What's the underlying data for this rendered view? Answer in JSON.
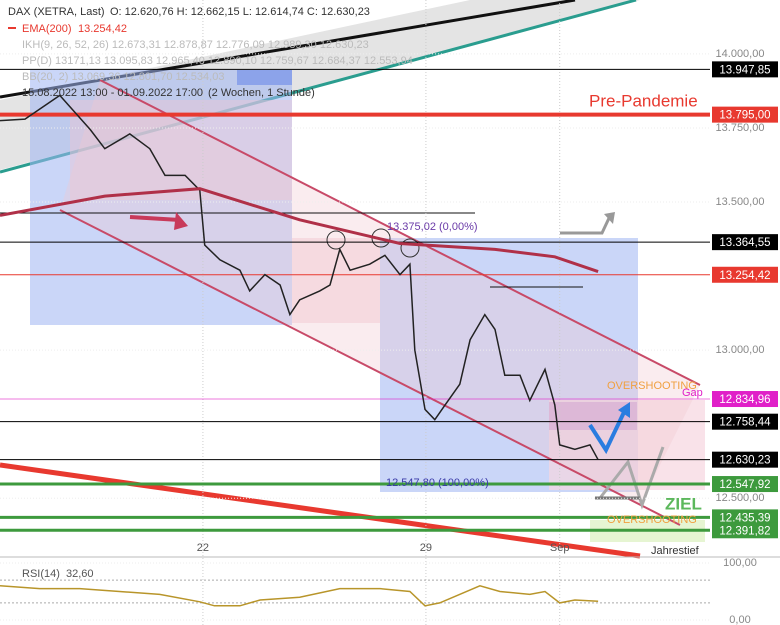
{
  "chart_data": [
    {
      "type": "line",
      "ohlc_text": "O: 12.620,76 H: 12.662,15 L: 12.614,74 C: 12.630,23",
      "legend_value": "13.254,42",
      "indicator_legends": [
        "IKH(9, 26, 52, 26) 12.673,31 12.878,87 12.776,09 12.989,30 12.630,23",
        "PP(D) 13171,13 13.095,83 12.965,40 12.890,10 12.759,67 12.684,37 12.553,94",
        "BB(20, 2) 13.069,36 12.801,70 12.534,03"
      ],
      "period": "15.08.2022 13:00 - 01.09.2022 17:00",
      "period_note": "(2 Wochen, 1 Stunde)",
      "x": [
        0.45,
        1.01,
        1.79,
        2.47,
        2.8,
        3.36,
        3.81,
        4.15,
        4.6,
        4.93,
        5.04,
        5.38,
        5.83,
        6.05,
        6.39,
        6.73,
        6.95,
        7.17,
        7.62,
        7.85,
        8.07,
        8.3,
        8.74,
        9.08,
        9.42,
        9.64,
        9.75,
        9.98,
        10.2,
        10.43,
        10.76,
        10.99,
        11.32,
        11.55,
        11.77,
        12.11,
        12.33,
        12.67,
        12.89,
        13.0,
        13.34,
        13.68,
        13.86
      ],
      "series": [
        {
          "name": "DAX (XETRA, Last)",
          "color": "#222222",
          "values": [
            13775,
            13780,
            13860,
            13745,
            13680,
            13730,
            13680,
            13590,
            13590,
            13540,
            13355,
            13305,
            13270,
            13200,
            13255,
            13220,
            13120,
            13170,
            13200,
            13220,
            13340,
            13270,
            13290,
            13320,
            13255,
            13290,
            13000,
            12800,
            12765,
            12815,
            12885,
            13035,
            13120,
            13070,
            12915,
            12915,
            12830,
            12935,
            12815,
            12680,
            12665,
            12680,
            12630
          ]
        },
        {
          "name": "EMA(200)",
          "color": "#b03048",
          "values": [
            13455,
            null,
            null,
            null,
            13520,
            null,
            null,
            null,
            null,
            13545,
            null,
            null,
            null,
            null,
            null,
            null,
            null,
            13440,
            null,
            null,
            null,
            null,
            null,
            null,
            13360,
            null,
            null,
            null,
            null,
            null,
            null,
            null,
            null,
            13340,
            null,
            null,
            null,
            null,
            13315,
            null,
            null,
            null,
            13265
          ]
        }
      ],
      "xlim": [
        0.45,
        16.37
      ],
      "xticks": [
        {
          "value": 5,
          "label": "22"
        },
        {
          "value": 10,
          "label": "29"
        },
        {
          "value": 13,
          "label": "Sep"
        }
      ],
      "ylim": [
        12305,
        14182
      ],
      "yticks": [
        {
          "value": 14000,
          "label": "14.000,00"
        },
        {
          "value": 13750,
          "label": "13.750,00"
        },
        {
          "value": 13500,
          "label": "13.500,00"
        },
        {
          "value": 13000,
          "label": "13.000,00"
        },
        {
          "value": 12500,
          "label": "12.500,00"
        }
      ],
      "levels": [
        {
          "value": 13947.85,
          "label": "13.947,85",
          "color": "#000000"
        },
        {
          "value": 13795,
          "label": "13.795,00",
          "color": "#e8392f"
        },
        {
          "value": 13364.55,
          "label": "13.364,55",
          "color": "#000000"
        },
        {
          "value": 13254.42,
          "label": "13.254,42",
          "color": "#e8392f"
        },
        {
          "value": 12834.96,
          "label": "12.834,96",
          "color": "#e020c8"
        },
        {
          "value": 12758.44,
          "label": "12.758,44",
          "color": "#000000"
        },
        {
          "value": 12630.23,
          "label": "12.630,23",
          "color": "#000000"
        },
        {
          "value": 12547.92,
          "label": "12.547,92",
          "color": "#3d9a3d"
        },
        {
          "value": 12435.39,
          "label": "12.435,39",
          "color": "#3d9a3d"
        },
        {
          "value": 12391.82,
          "label": "12.391,82",
          "color": "#3d9a3d"
        }
      ],
      "annotations": {
        "pre_pandemie": "Pre-Pandemie",
        "fib_top": "13.375,02 (0,00%)",
        "fib_bottom": "12.547,80 (100,00%)",
        "overshooting_top": "OVERSHOOTING",
        "gap": "Gap",
        "ziel": "ZIEL",
        "overshooting_bottom": "OVERSHOOTING",
        "jahrestief": "Jahrestief"
      }
    },
    {
      "type": "line",
      "x": [
        0.45,
        1.34,
        2.24,
        3.13,
        4.03,
        4.93,
        5.26,
        5.83,
        6.28,
        7.17,
        8.07,
        8.97,
        9.64,
        9.98,
        10.31,
        11.21,
        11.66,
        12.33,
        12.67,
        13.0,
        13.34,
        13.86
      ],
      "series": [
        {
          "name": "RSI(14)",
          "color": "#b8952a",
          "values": [
            60,
            55,
            55,
            50,
            45,
            32,
            25,
            25,
            35,
            40,
            55,
            55,
            50,
            25,
            30,
            60,
            50,
            45,
            50,
            30,
            35,
            33
          ]
        }
      ],
      "legend_value": "32,60",
      "xlim": [
        0.45,
        16.37
      ],
      "ylim": [
        0,
        100
      ],
      "yticks": [
        {
          "value": 100,
          "label": "100,00"
        },
        {
          "value": 0,
          "label": "0,00"
        }
      ],
      "bands": [
        70,
        30
      ]
    }
  ]
}
